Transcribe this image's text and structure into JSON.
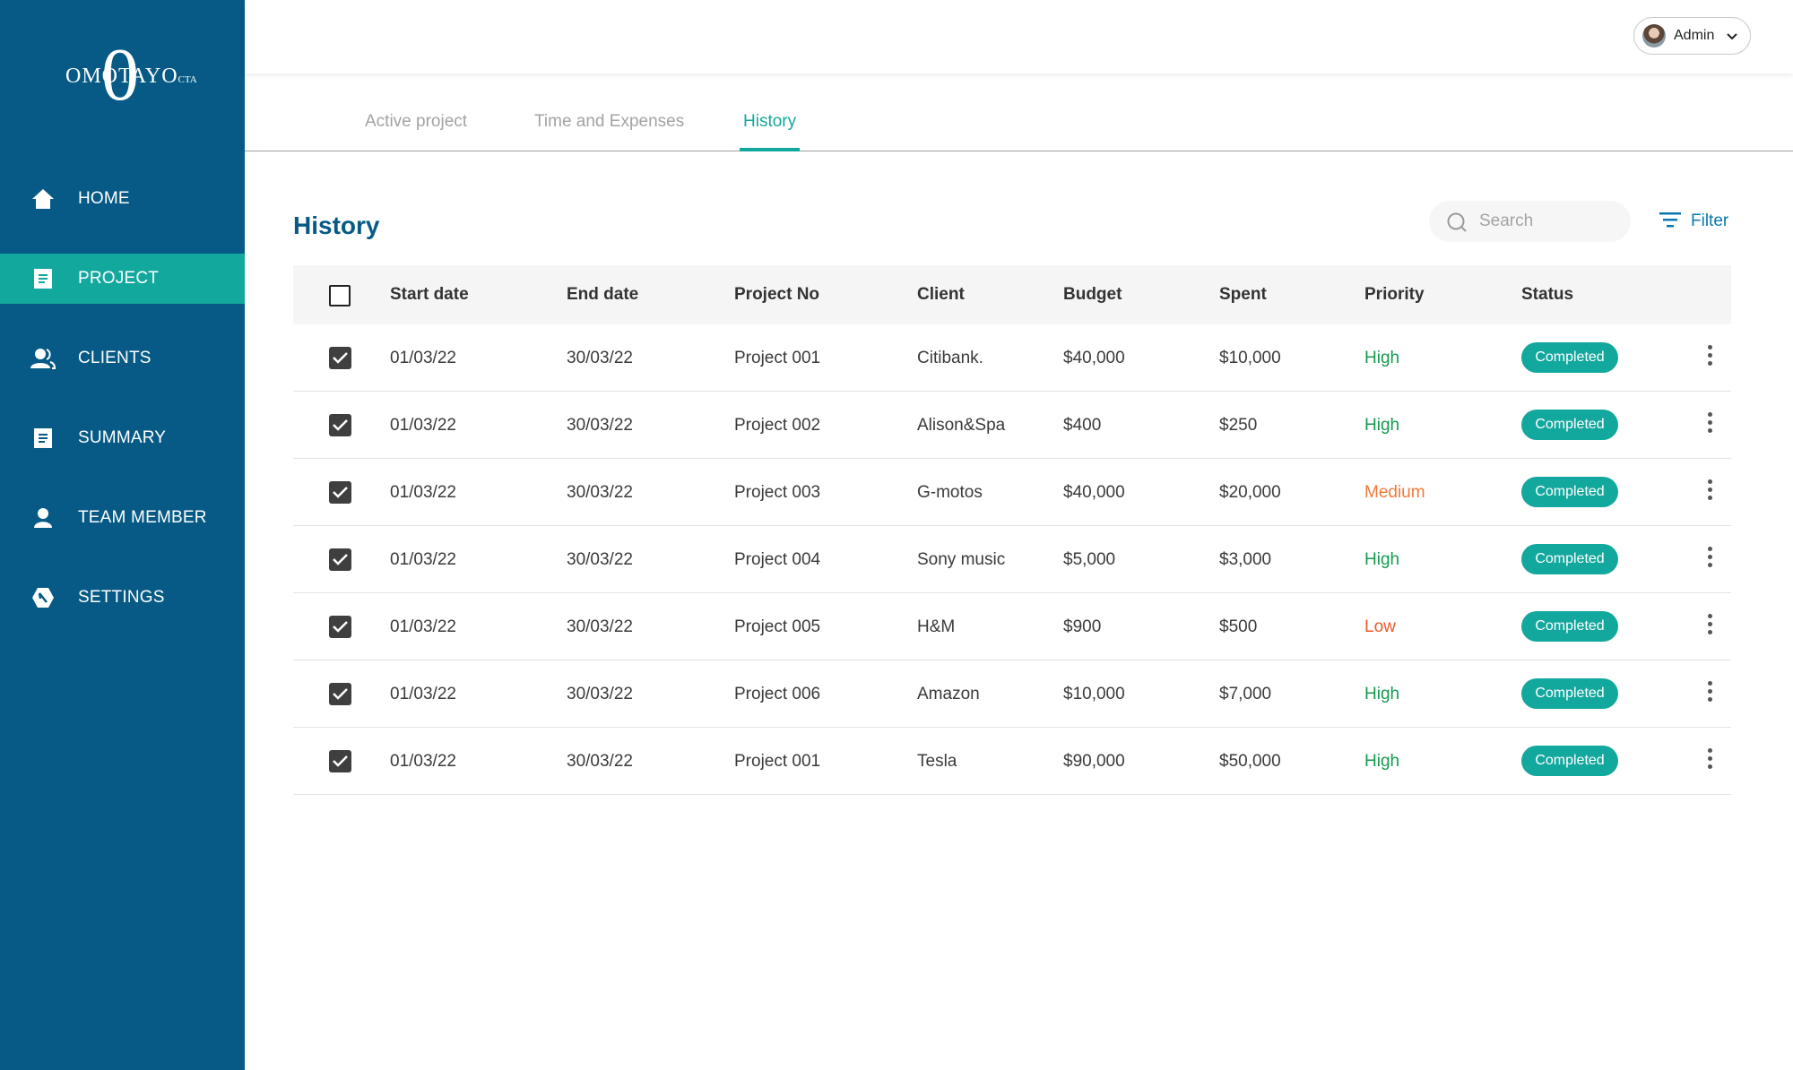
{
  "logo": {
    "big_letter": "0",
    "text": "OMOTAYO",
    "small": "CTA"
  },
  "nav": [
    {
      "id": "home",
      "label": "HOME",
      "icon": "home-icon",
      "active": false
    },
    {
      "id": "project",
      "label": "PROJECT",
      "icon": "document-icon",
      "active": true
    },
    {
      "id": "clients",
      "label": "CLIENTS",
      "icon": "users-icon",
      "active": false
    },
    {
      "id": "summary",
      "label": "SUMMARY",
      "icon": "summary-icon",
      "active": false
    },
    {
      "id": "team-member",
      "label": "TEAM MEMBER",
      "icon": "user-icon",
      "active": false
    },
    {
      "id": "settings",
      "label": "SETTINGS",
      "icon": "gear-icon",
      "active": false
    }
  ],
  "topbar": {
    "user_label": "Admin"
  },
  "tabs": [
    {
      "label": "Active project",
      "active": false
    },
    {
      "label": "Time and Expenses",
      "active": false
    },
    {
      "label": "History",
      "active": true
    }
  ],
  "page": {
    "title": "History"
  },
  "search": {
    "placeholder": "Search",
    "value": ""
  },
  "filter": {
    "label": "Filter"
  },
  "table": {
    "columns": [
      "Start date",
      "End date",
      "Project No",
      "Client",
      "Budget",
      "Spent",
      "Priority",
      "Status"
    ],
    "header_checked": false,
    "rows": [
      {
        "checked": true,
        "start": "01/03/22",
        "end": "30/03/22",
        "project": "Project 001",
        "client": "Citibank.",
        "budget": "$40,000",
        "spent": "$10,000",
        "priority": "High",
        "status": "Completed"
      },
      {
        "checked": true,
        "start": "01/03/22",
        "end": "30/03/22",
        "project": "Project 002",
        "client": "Alison&Spa",
        "budget": "$400",
        "spent": "$250",
        "priority": "High",
        "status": "Completed"
      },
      {
        "checked": true,
        "start": "01/03/22",
        "end": "30/03/22",
        "project": "Project 003",
        "client": "G-motos",
        "budget": "$40,000",
        "spent": "$20,000",
        "priority": "Medium",
        "status": "Completed"
      },
      {
        "checked": true,
        "start": "01/03/22",
        "end": "30/03/22",
        "project": "Project 004",
        "client": "Sony music",
        "budget": "$5,000",
        "spent": "$3,000",
        "priority": "High",
        "status": "Completed"
      },
      {
        "checked": true,
        "start": "01/03/22",
        "end": "30/03/22",
        "project": "Project 005",
        "client": "H&M",
        "budget": "$900",
        "spent": "$500",
        "priority": "Low",
        "status": "Completed"
      },
      {
        "checked": true,
        "start": "01/03/22",
        "end": "30/03/22",
        "project": "Project 006",
        "client": "Amazon",
        "budget": "$10,000",
        "spent": "$7,000",
        "priority": "High",
        "status": "Completed"
      },
      {
        "checked": true,
        "start": "01/03/22",
        "end": "30/03/22",
        "project": "Project 001",
        "client": "Tesla",
        "budget": "$90,000",
        "spent": "$50,000",
        "priority": "High",
        "status": "Completed"
      }
    ]
  },
  "colors": {
    "sidebar": "#065a85",
    "accent": "#13a89e",
    "title": "#065a85",
    "filter": "#0a78b0",
    "priority_high": "#139a4f",
    "priority_medium": "#ee7a3b",
    "priority_low": "#ec5a2c"
  }
}
